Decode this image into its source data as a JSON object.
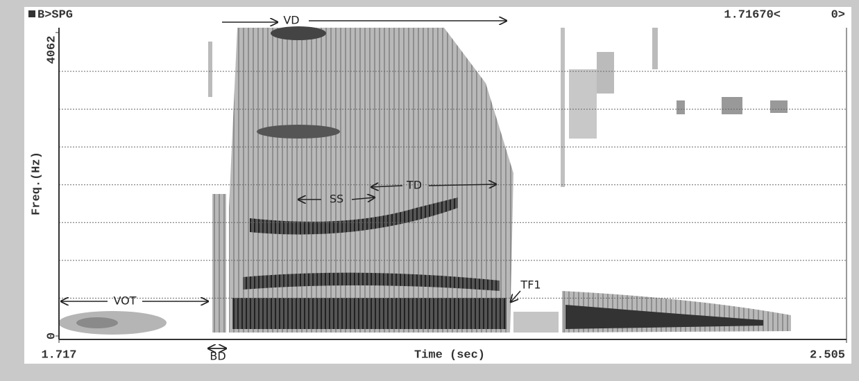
{
  "chart_data": {
    "type": "spectrogram",
    "title": "B>SPG",
    "cursor": "1.71670<",
    "cursor_channel": "0>",
    "xlabel": "Time (sec)",
    "ylabel": "Freq.(Hz)",
    "xlim": [
      1.717,
      2.505
    ],
    "xticks": [
      1.717,
      2.505
    ],
    "ylim": [
      0,
      4062
    ],
    "yticks": [
      0,
      4062
    ],
    "grid": true,
    "annotations": [
      "VD",
      "VOT",
      "SS",
      "TD",
      "TF1",
      "BD"
    ]
  }
}
